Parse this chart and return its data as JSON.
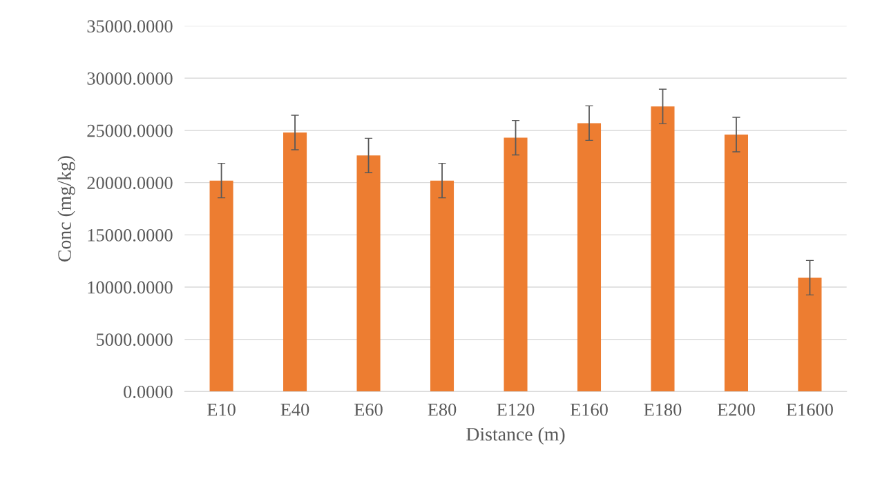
{
  "chart_data": {
    "type": "bar",
    "xlabel": "Distance (m)",
    "ylabel": "Conc (mg/kg)",
    "categories": [
      "E10",
      "E40",
      "E60",
      "E80",
      "E120",
      "E160",
      "E180",
      "E200",
      "E1600"
    ],
    "values": [
      20200,
      24800,
      22600,
      20200,
      24300,
      25700,
      27300,
      24600,
      10900
    ],
    "errors": [
      1650,
      1650,
      1650,
      1650,
      1650,
      1650,
      1650,
      1650,
      1650
    ],
    "color": "#ed7d31",
    "ylim": [
      0,
      35000
    ],
    "yticks": [
      {
        "value": 0,
        "label": "0.0000"
      },
      {
        "value": 5000,
        "label": "5000.0000"
      },
      {
        "value": 10000,
        "label": "10000.0000"
      },
      {
        "value": 15000,
        "label": "15000.0000"
      },
      {
        "value": 20000,
        "label": "20000.0000"
      },
      {
        "value": 25000,
        "label": "25000.0000"
      },
      {
        "value": 30000,
        "label": "30000.0000"
      },
      {
        "value": 35000,
        "label": "35000.0000"
      }
    ],
    "grid": "y"
  }
}
